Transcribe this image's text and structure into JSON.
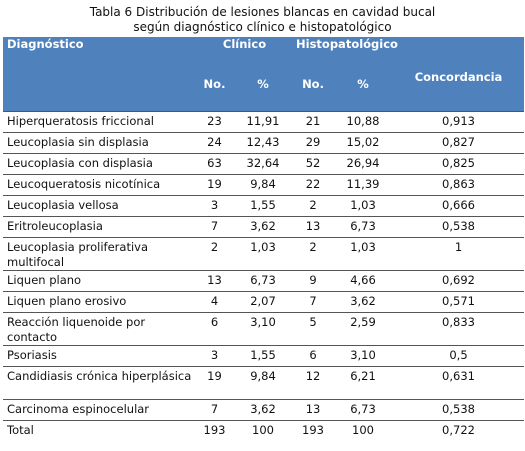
{
  "caption": {
    "line1": "Tabla 6 Distribución de  lesiones blancas en cavidad bucal",
    "line2": "según diagnóstico clínico e histopatológico"
  },
  "header": {
    "diagnostico": "Diagnóstico",
    "clinico": "Clínico",
    "histopatologico": "Histopatológico",
    "concordancia": "Concordancia",
    "no": "No.",
    "pct": "%"
  },
  "rows": [
    {
      "diag": "Hiperqueratosis friccional",
      "cli_no": "23",
      "cli_pct": "11,91",
      "his_no": "21",
      "his_pct": "10,88",
      "conc": "0,913"
    },
    {
      "diag": "Leucoplasia sin displasia",
      "cli_no": "24",
      "cli_pct": "12,43",
      "his_no": "29",
      "his_pct": "15,02",
      "conc": "0,827"
    },
    {
      "diag": "Leucoplasia con displasia",
      "cli_no": "63",
      "cli_pct": "32,64",
      "his_no": "52",
      "his_pct": "26,94",
      "conc": "0,825"
    },
    {
      "diag": "Leucoqueratosis nicotínica",
      "cli_no": "19",
      "cli_pct": "9,84",
      "his_no": "22",
      "his_pct": "11,39",
      "conc": "0,863"
    },
    {
      "diag": "Leucoplasia vellosa",
      "cli_no": "3",
      "cli_pct": "1,55",
      "his_no": "2",
      "his_pct": "1,03",
      "conc": "0,666"
    },
    {
      "diag": "Eritroleucoplasia",
      "cli_no": "7",
      "cli_pct": "3,62",
      "his_no": "13",
      "his_pct": "6,73",
      "conc": "0,538"
    },
    {
      "diag": "Leucoplasia proliferativa multifocal",
      "cli_no": "2",
      "cli_pct": "1,03",
      "his_no": "2",
      "his_pct": "1,03",
      "conc": "1"
    },
    {
      "diag": "Liquen plano",
      "cli_no": "13",
      "cli_pct": "6,73",
      "his_no": "9",
      "his_pct": "4,66",
      "conc": "0,692"
    },
    {
      "diag": "Liquen plano erosivo",
      "cli_no": "4",
      "cli_pct": "2,07",
      "his_no": "7",
      "his_pct": "3,62",
      "conc": "0,571"
    },
    {
      "diag": "Reacción liquenoide por contacto",
      "cli_no": "6",
      "cli_pct": "3,10",
      "his_no": "5",
      "his_pct": "2,59",
      "conc": "0,833"
    },
    {
      "diag": "Psoriasis",
      "cli_no": "3",
      "cli_pct": "1,55",
      "his_no": "6",
      "his_pct": "3,10",
      "conc": "0,5"
    },
    {
      "diag": "Candidiasis crónica hiperplásica",
      "cli_no": "19",
      "cli_pct": "9,84",
      "his_no": "12",
      "his_pct": "6,21",
      "conc": "0,631"
    },
    {
      "diag": "Carcinoma espinocelular",
      "cli_no": "7",
      "cli_pct": "3,62",
      "his_no": "13",
      "his_pct": "6,73",
      "conc": "0,538"
    },
    {
      "diag": "Total",
      "cli_no": "193",
      "cli_pct": "100",
      "his_no": "193",
      "his_pct": "100",
      "conc": "0,722"
    }
  ],
  "colors": {
    "header_bg": "#4f81bd",
    "header_text": "#ffffff"
  }
}
